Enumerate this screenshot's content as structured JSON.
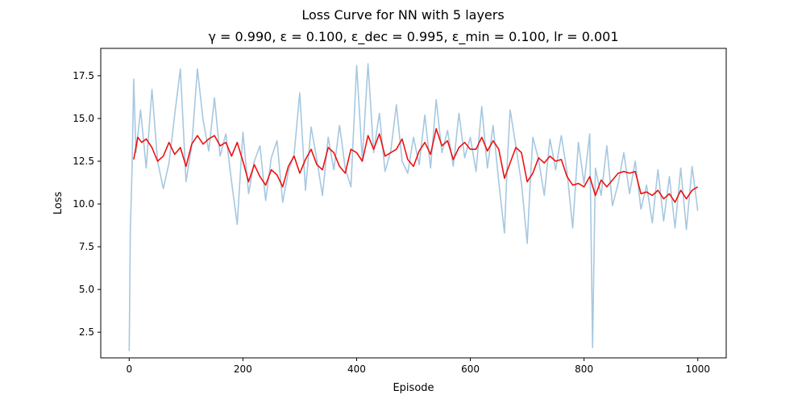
{
  "chart_data": {
    "type": "line",
    "suptitle": "Loss Curve for NN with 5 layers",
    "title": "γ = 0.990, ε = 0.100, ε_dec = 0.995, ε_min = 0.100, lr = 0.001",
    "xlabel": "Episode",
    "ylabel": "Loss",
    "xlim": [
      -50,
      1050
    ],
    "ylim": [
      1.0,
      19.1
    ],
    "xticks": [
      0,
      200,
      400,
      600,
      800,
      1000
    ],
    "yticks": [
      2.5,
      5.0,
      7.5,
      10.0,
      12.5,
      15.0,
      17.5
    ],
    "xtick_labels": [
      "0",
      "200",
      "400",
      "600",
      "800",
      "1000"
    ],
    "ytick_labels": [
      "2.5",
      "5.0",
      "7.5",
      "10.0",
      "12.5",
      "15.0",
      "17.5"
    ],
    "grid": false,
    "legend": false,
    "series": [
      {
        "color": "#a6c8e0",
        "style": "raw per-episode loss (noisy)",
        "x": [
          0,
          2,
          5,
          8,
          12,
          20,
          30,
          40,
          50,
          60,
          70,
          80,
          90,
          100,
          110,
          120,
          130,
          140,
          150,
          160,
          170,
          180,
          190,
          200,
          210,
          220,
          230,
          240,
          250,
          260,
          270,
          280,
          290,
          300,
          310,
          320,
          330,
          340,
          350,
          360,
          370,
          380,
          390,
          400,
          410,
          420,
          430,
          440,
          450,
          460,
          470,
          480,
          490,
          500,
          510,
          520,
          530,
          540,
          550,
          560,
          570,
          580,
          590,
          600,
          610,
          620,
          630,
          640,
          650,
          660,
          665,
          670,
          680,
          690,
          700,
          705,
          710,
          720,
          730,
          740,
          750,
          760,
          770,
          780,
          790,
          800,
          810,
          815,
          820,
          830,
          840,
          850,
          860,
          870,
          880,
          890,
          900,
          910,
          920,
          930,
          940,
          950,
          960,
          970,
          980,
          990,
          1000
        ],
        "values": [
          1.4,
          8.5,
          12.0,
          17.3,
          13.0,
          15.5,
          12.1,
          16.7,
          12.5,
          10.9,
          12.4,
          15.2,
          17.9,
          11.3,
          13.4,
          17.9,
          14.9,
          13.1,
          16.2,
          12.8,
          14.1,
          11.3,
          8.8,
          14.2,
          10.6,
          12.5,
          13.4,
          10.2,
          12.7,
          13.7,
          10.1,
          11.9,
          12.9,
          16.5,
          10.8,
          14.5,
          12.6,
          10.5,
          13.9,
          12.0,
          14.6,
          12.1,
          11.0,
          18.1,
          12.6,
          18.2,
          13.0,
          15.3,
          11.9,
          13.1,
          15.8,
          12.5,
          11.8,
          13.9,
          12.3,
          15.2,
          12.1,
          16.1,
          13.0,
          14.3,
          12.2,
          15.3,
          12.7,
          13.9,
          11.9,
          15.7,
          12.1,
          14.6,
          11.3,
          8.3,
          12.4,
          15.5,
          13.4,
          11.2,
          7.7,
          11.0,
          13.9,
          12.6,
          10.5,
          13.8,
          12.0,
          14.0,
          11.9,
          8.6,
          13.6,
          11.2,
          14.1,
          1.6,
          12.1,
          10.5,
          13.4,
          9.9,
          11.2,
          13.0,
          10.6,
          12.5,
          9.7,
          11.1,
          8.9,
          12.0,
          9.0,
          11.6,
          8.6,
          12.1,
          8.5,
          12.2,
          9.6
        ]
      },
      {
        "color": "#ee1111",
        "style": "moving average",
        "x": [
          8,
          15,
          22,
          30,
          40,
          50,
          60,
          70,
          80,
          90,
          100,
          110,
          120,
          130,
          140,
          150,
          160,
          170,
          180,
          190,
          200,
          210,
          220,
          230,
          240,
          250,
          260,
          270,
          280,
          290,
          300,
          310,
          320,
          330,
          340,
          350,
          360,
          370,
          380,
          390,
          400,
          410,
          420,
          430,
          440,
          450,
          460,
          470,
          480,
          490,
          500,
          510,
          520,
          530,
          540,
          550,
          560,
          570,
          580,
          590,
          600,
          610,
          620,
          630,
          640,
          650,
          660,
          670,
          680,
          690,
          700,
          710,
          720,
          730,
          740,
          750,
          760,
          770,
          780,
          790,
          800,
          810,
          820,
          830,
          840,
          850,
          860,
          870,
          880,
          890,
          900,
          910,
          920,
          930,
          940,
          950,
          960,
          970,
          980,
          990,
          1000
        ],
        "values": [
          12.6,
          13.9,
          13.6,
          13.8,
          13.3,
          12.5,
          12.8,
          13.6,
          12.9,
          13.3,
          12.2,
          13.5,
          14.0,
          13.5,
          13.8,
          14.0,
          13.4,
          13.6,
          12.8,
          13.6,
          12.5,
          11.3,
          12.3,
          11.6,
          11.1,
          12.0,
          11.7,
          11.0,
          12.2,
          12.8,
          11.8,
          12.6,
          13.2,
          12.3,
          12.0,
          13.3,
          13.0,
          12.2,
          11.8,
          13.2,
          13.0,
          12.5,
          14.0,
          13.2,
          14.1,
          12.8,
          13.0,
          13.2,
          13.8,
          12.6,
          12.2,
          13.1,
          13.6,
          12.9,
          14.4,
          13.4,
          13.7,
          12.6,
          13.3,
          13.6,
          13.2,
          13.2,
          13.9,
          13.1,
          13.7,
          13.2,
          11.5,
          12.4,
          13.3,
          13.0,
          11.3,
          11.8,
          12.7,
          12.4,
          12.8,
          12.5,
          12.6,
          11.6,
          11.1,
          11.2,
          11.0,
          11.6,
          10.5,
          11.4,
          11.0,
          11.4,
          11.8,
          11.9,
          11.8,
          11.9,
          10.6,
          10.7,
          10.5,
          10.8,
          10.3,
          10.6,
          10.1,
          10.8,
          10.3,
          10.8,
          11.0
        ]
      }
    ]
  }
}
